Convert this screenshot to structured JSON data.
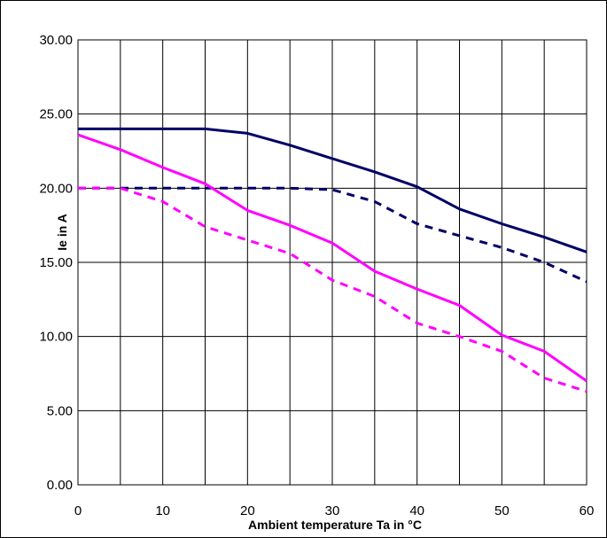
{
  "chart_data": {
    "type": "line",
    "title": "",
    "xlabel": "Ambient temperature Ta in °C",
    "ylabel": "Ie in A",
    "xlim": [
      0,
      60
    ],
    "ylim": [
      0,
      30
    ],
    "x_ticks": [
      "0",
      "10",
      "20",
      "30",
      "40",
      "50",
      "60"
    ],
    "y_ticks": [
      "0.00",
      "5.00",
      "10.00",
      "15.00",
      "20.00",
      "25.00",
      "30.00"
    ],
    "grid": true,
    "legend": "none",
    "x": [
      0,
      5,
      10,
      15,
      20,
      25,
      30,
      35,
      40,
      45,
      50,
      55,
      60
    ],
    "series": [
      {
        "color": "#000066",
        "style": "solid",
        "values": [
          24.0,
          24.0,
          24.0,
          24.0,
          23.7,
          22.9,
          22.0,
          21.1,
          20.1,
          18.6,
          17.6,
          16.7,
          15.7
        ]
      },
      {
        "color": "#000066",
        "style": "dashed",
        "values": [
          20.0,
          20.0,
          20.0,
          20.0,
          20.0,
          20.0,
          19.9,
          19.1,
          17.6,
          16.8,
          16.0,
          15.0,
          13.7
        ]
      },
      {
        "color": "#ff00ff",
        "style": "solid",
        "values": [
          23.6,
          22.6,
          21.4,
          20.3,
          18.5,
          17.5,
          16.3,
          14.4,
          13.2,
          12.1,
          10.1,
          9.0,
          7.0
        ]
      },
      {
        "color": "#ff00ff",
        "style": "dashed",
        "values": [
          20.0,
          20.0,
          19.1,
          17.4,
          16.5,
          15.6,
          13.8,
          12.7,
          10.9,
          10.0,
          9.0,
          7.2,
          6.3
        ]
      }
    ]
  }
}
